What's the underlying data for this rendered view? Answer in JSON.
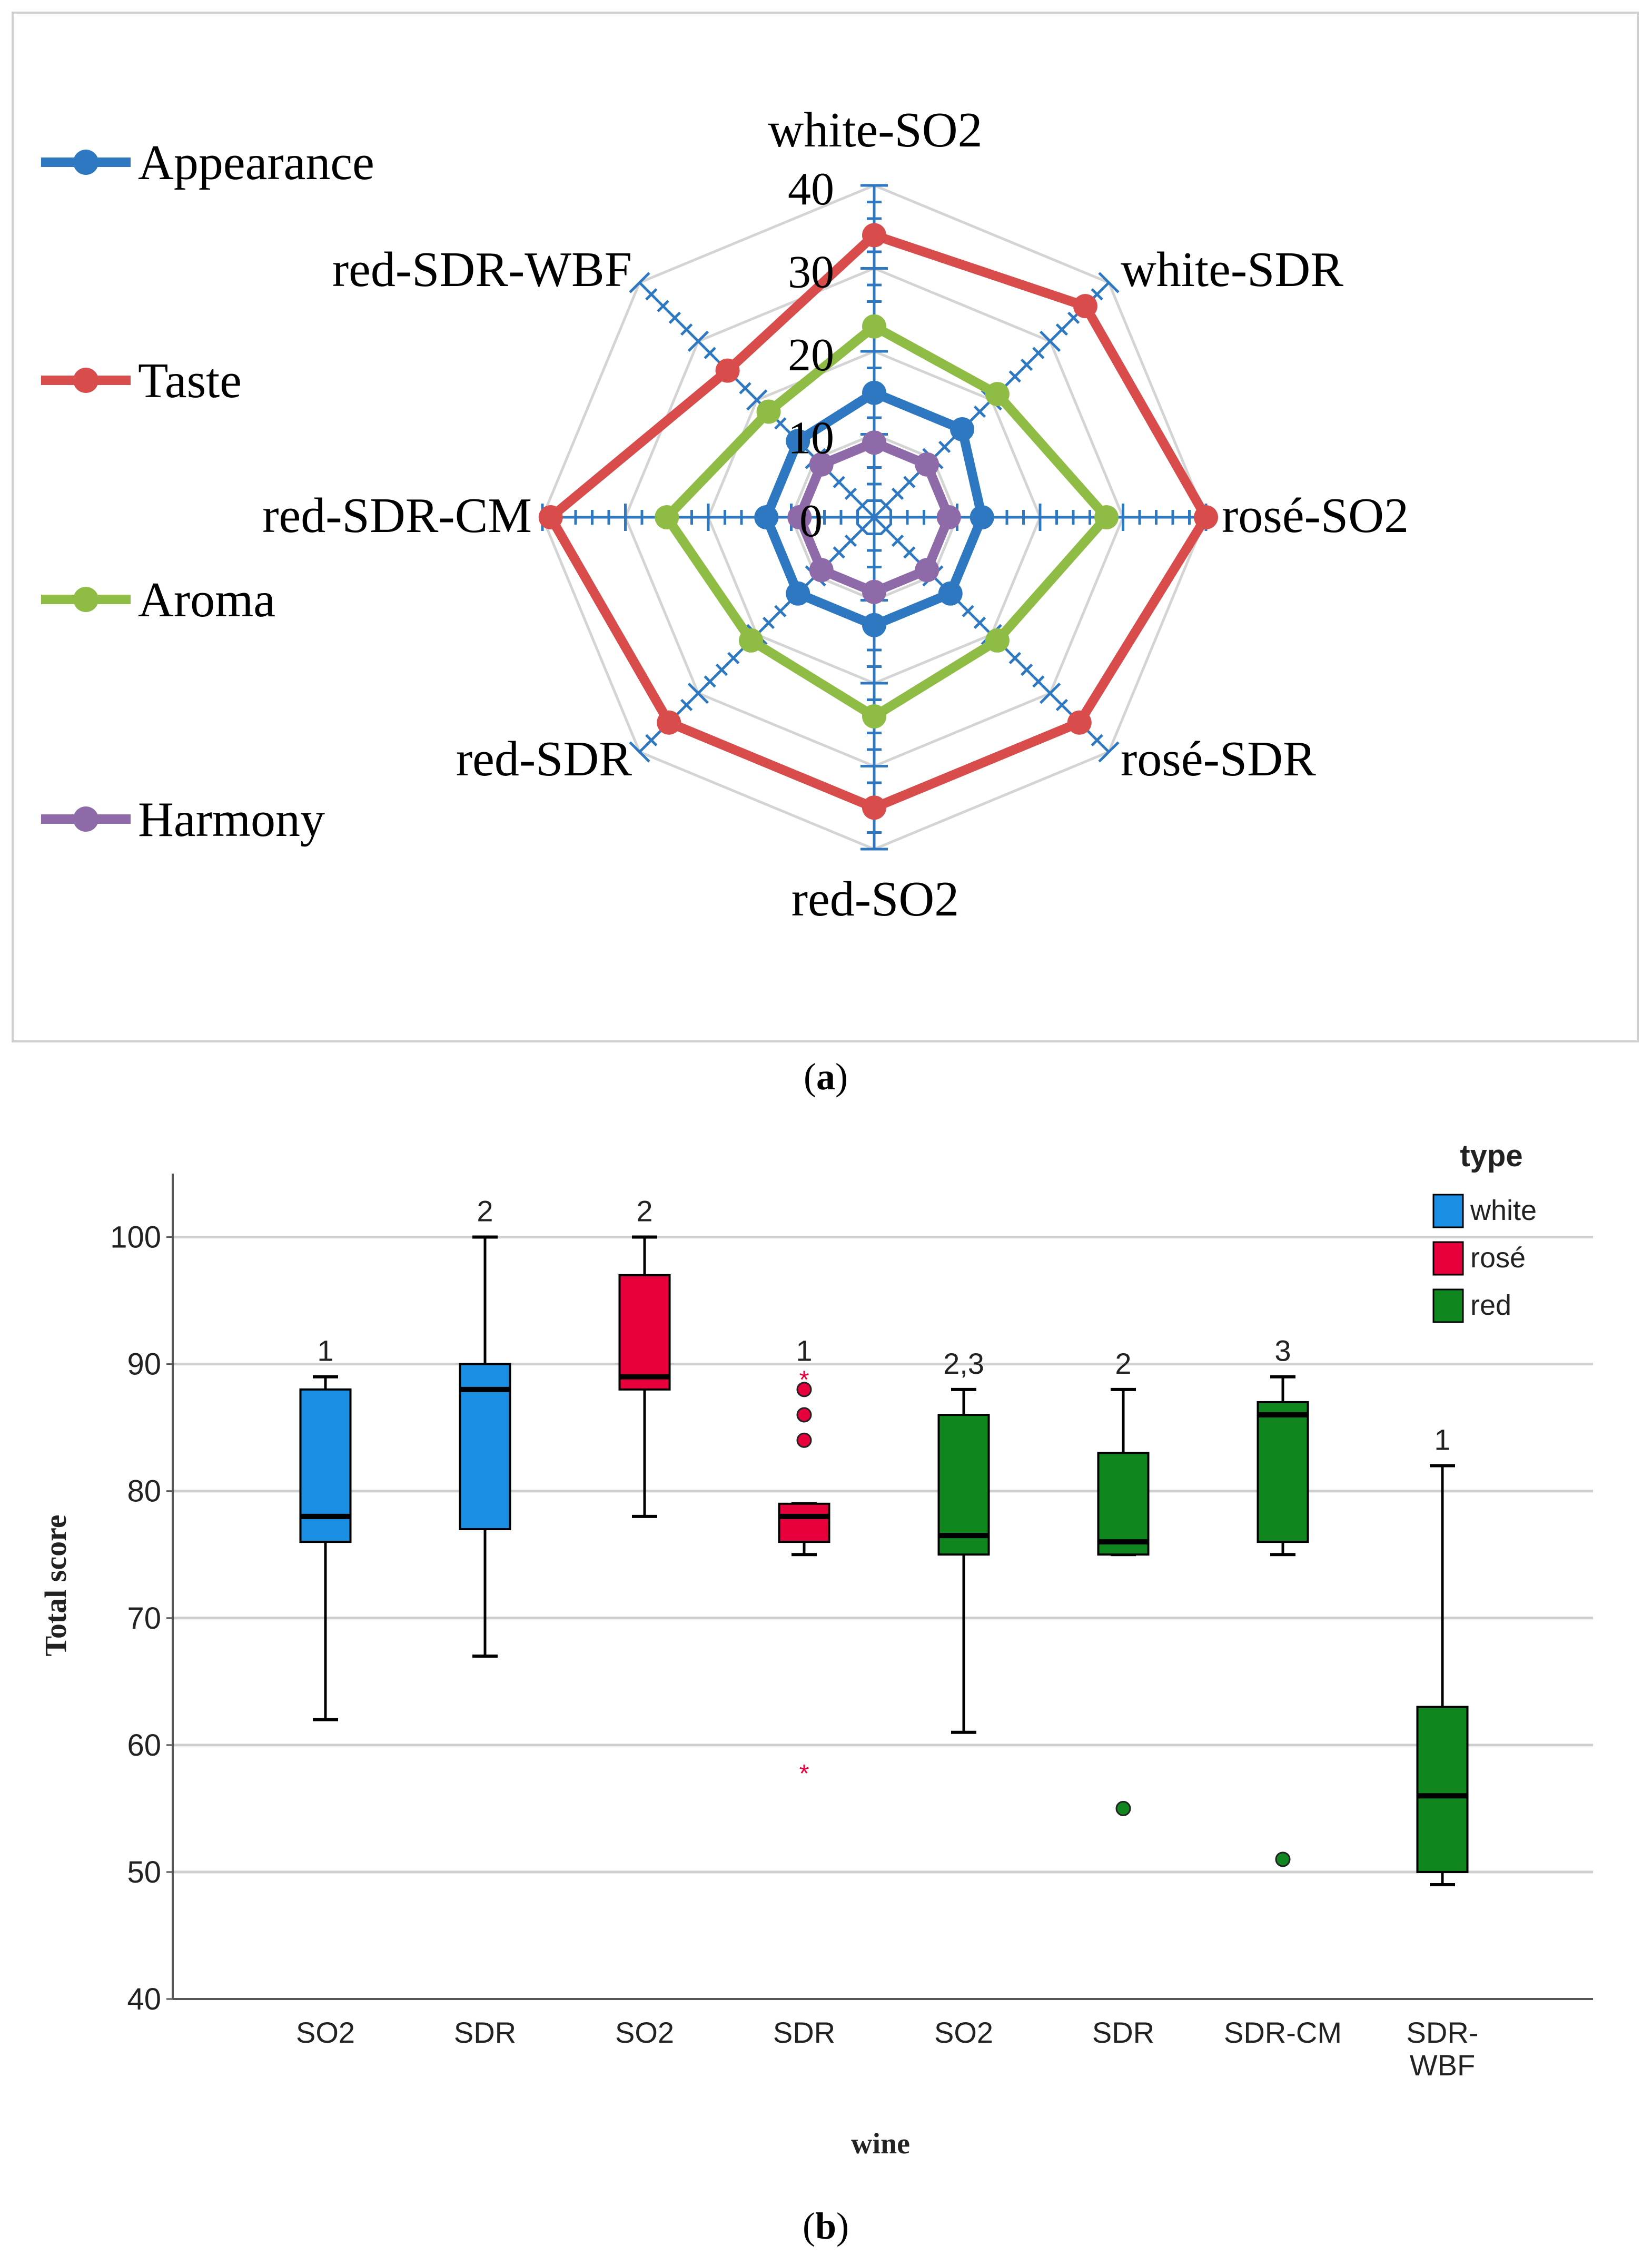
{
  "chart_data": [
    {
      "type": "radar",
      "panel_label": "a",
      "axes": [
        "white-SO2",
        "white-SDR",
        "rosé-SO2",
        "rosé-SDR",
        "red-SO2",
        "red-SDR",
        "red-SDR-CM",
        "red-SDR-WBF"
      ],
      "rlim": [
        0,
        40
      ],
      "ticks": [
        0,
        10,
        20,
        30,
        40
      ],
      "tick_labels": [
        "0",
        "10",
        "20",
        "30",
        "40"
      ],
      "series": [
        {
          "name": "Appearance",
          "color": "#2e78c2",
          "values": [
            15,
            15,
            13,
            13,
            13,
            13,
            13,
            13
          ]
        },
        {
          "name": "Taste",
          "color": "#d94c4c",
          "values": [
            34,
            36,
            40,
            35,
            35,
            35,
            39,
            25
          ]
        },
        {
          "name": "Aroma",
          "color": "#8fbc45",
          "values": [
            23,
            21,
            28,
            21,
            24,
            21,
            25,
            18
          ]
        },
        {
          "name": "Harmony",
          "color": "#8e6aa8",
          "values": [
            9,
            9,
            9,
            9,
            9,
            9,
            9,
            9
          ]
        }
      ],
      "legend_position": "left"
    },
    {
      "type": "box",
      "panel_label": "b",
      "xlabel": "wine",
      "ylabel": "Total score",
      "ylim": [
        40,
        105
      ],
      "yticks": [
        40,
        50,
        60,
        70,
        80,
        90,
        100
      ],
      "ytick_labels": [
        "40",
        "50",
        "60",
        "70",
        "80",
        "90",
        "100"
      ],
      "legend": {
        "title": "type",
        "position": "top-right",
        "items": [
          {
            "label": "white",
            "color": "#1a8fe3"
          },
          {
            "label": "rosé",
            "color": "#e8003d"
          },
          {
            "label": "red",
            "color": "#10861e"
          }
        ]
      },
      "boxes": [
        {
          "label": "SO2",
          "group": "white",
          "whisker_low": 62,
          "q1": 76,
          "median": 78,
          "q3": 88,
          "whisker_high": 89,
          "outliers": [],
          "extremes": [],
          "annotation": "1"
        },
        {
          "label": "SDR",
          "group": "white",
          "whisker_low": 67,
          "q1": 77,
          "median": 88,
          "q3": 90,
          "whisker_high": 100,
          "outliers": [],
          "extremes": [],
          "annotation": "2"
        },
        {
          "label": "SO2",
          "group": "rosé",
          "whisker_low": 78,
          "q1": 88,
          "median": 89,
          "q3": 97,
          "whisker_high": 100,
          "outliers": [],
          "extremes": [],
          "annotation": "2"
        },
        {
          "label": "SDR",
          "group": "rosé",
          "whisker_low": 75,
          "q1": 76,
          "median": 78,
          "q3": 79,
          "whisker_high": 79,
          "outliers": [
            84,
            86,
            88
          ],
          "extremes": [
            58,
            89
          ],
          "annotation": "1"
        },
        {
          "label": "SO2",
          "group": "red",
          "whisker_low": 61,
          "q1": 75,
          "median": 76.5,
          "q3": 86,
          "whisker_high": 88,
          "outliers": [],
          "extremes": [],
          "annotation": "2,3"
        },
        {
          "label": "SDR",
          "group": "red",
          "whisker_low": 75,
          "q1": 75,
          "median": 76,
          "q3": 83,
          "whisker_high": 88,
          "outliers": [
            55
          ],
          "extremes": [],
          "annotation": "2"
        },
        {
          "label": "SDR-CM",
          "group": "red",
          "whisker_low": 75,
          "q1": 76,
          "median": 86,
          "q3": 87,
          "whisker_high": 89,
          "outliers": [
            51
          ],
          "extremes": [],
          "annotation": "3"
        },
        {
          "label": "SDR-WBF",
          "label_lines": [
            "SDR-",
            "WBF"
          ],
          "group": "red",
          "whisker_low": 49,
          "q1": 50,
          "median": 56,
          "q3": 63,
          "whisker_high": 82,
          "outliers": [],
          "extremes": [],
          "annotation": "1"
        }
      ]
    }
  ]
}
